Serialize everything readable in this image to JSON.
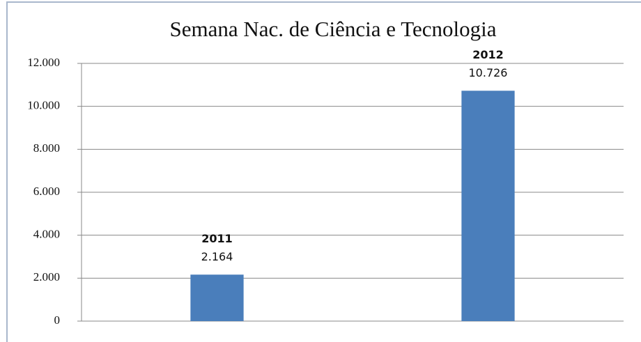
{
  "chart_data": {
    "type": "bar",
    "title": "Semana Nac. de Ciência e Tecnologia",
    "categories": [
      "2011",
      "2012"
    ],
    "values": [
      2164,
      10726
    ],
    "value_labels": [
      "2.164",
      "10.726"
    ],
    "color": "#4a7ebb",
    "ylim": [
      0,
      12000
    ],
    "yticks": [
      0,
      {
        "value": 2000,
        "label": "2.000"
      },
      {
        "value": 4000,
        "label": "4.000"
      },
      {
        "value": 6000,
        "label": "6.000"
      },
      {
        "value": 8000,
        "label": "8.000"
      },
      {
        "value": 10000,
        "label": "10.000"
      },
      {
        "value": 12000,
        "label": "12.000"
      }
    ],
    "grid": true
  }
}
